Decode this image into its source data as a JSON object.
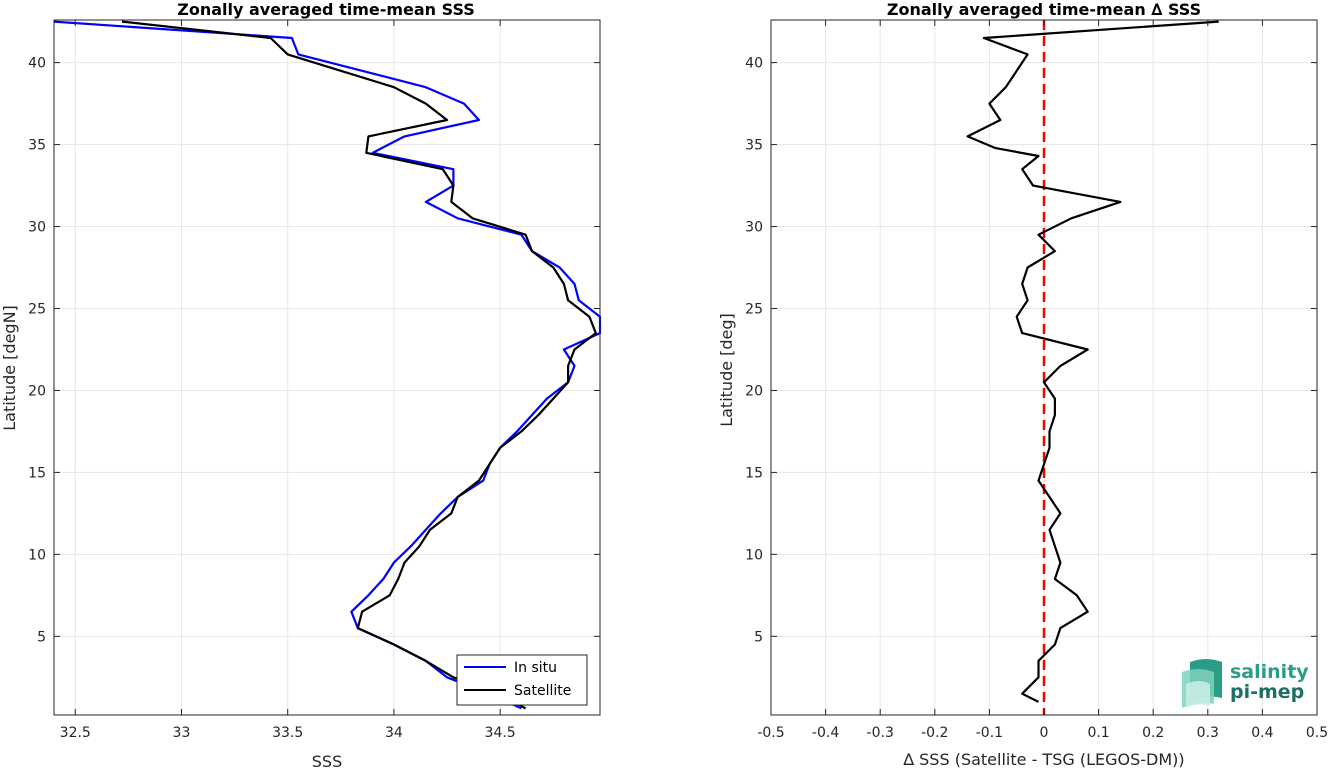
{
  "chart_data": [
    {
      "type": "line",
      "title": "Zonally averaged time-mean SSS",
      "xlabel": "SSS",
      "ylabel": "Latitude [degN]",
      "xlim": [
        32.4,
        34.97
      ],
      "ylim": [
        0.2,
        42.6
      ],
      "xticks": [
        32.5,
        33,
        33.5,
        34,
        34.5
      ],
      "yticks": [
        5,
        10,
        15,
        20,
        25,
        30,
        35,
        40
      ],
      "grid": true,
      "legend": "bottom-right",
      "series": [
        {
          "name": "In situ",
          "color": "#0000ff",
          "points": [
            [
              32.4,
              42.5
            ],
            [
              33.52,
              41.5
            ],
            [
              33.55,
              40.5
            ],
            [
              33.85,
              39.5
            ],
            [
              34.15,
              38.5
            ],
            [
              34.33,
              37.5
            ],
            [
              34.4,
              36.5
            ],
            [
              34.05,
              35.5
            ],
            [
              33.9,
              34.5
            ],
            [
              34.28,
              33.5
            ],
            [
              34.28,
              32.5
            ],
            [
              34.15,
              31.5
            ],
            [
              34.3,
              30.5
            ],
            [
              34.6,
              29.5
            ],
            [
              34.65,
              28.5
            ],
            [
              34.78,
              27.5
            ],
            [
              34.85,
              26.5
            ],
            [
              34.87,
              25.5
            ],
            [
              34.97,
              24.5
            ],
            [
              34.97,
              23.5
            ],
            [
              34.8,
              22.5
            ],
            [
              34.85,
              21.5
            ],
            [
              34.82,
              20.5
            ],
            [
              34.72,
              19.5
            ],
            [
              34.65,
              18.5
            ],
            [
              34.58,
              17.5
            ],
            [
              34.5,
              16.5
            ],
            [
              34.45,
              15.5
            ],
            [
              34.42,
              14.5
            ],
            [
              34.3,
              13.5
            ],
            [
              34.22,
              12.5
            ],
            [
              34.15,
              11.5
            ],
            [
              34.08,
              10.5
            ],
            [
              34.0,
              9.5
            ],
            [
              33.95,
              8.5
            ],
            [
              33.88,
              7.5
            ],
            [
              33.8,
              6.5
            ],
            [
              33.83,
              5.5
            ],
            [
              34.0,
              4.5
            ],
            [
              34.15,
              3.5
            ],
            [
              34.25,
              2.5
            ],
            [
              34.45,
              1.5
            ],
            [
              34.6,
              0.6
            ]
          ]
        },
        {
          "name": "Satellite",
          "color": "#000000",
          "points": [
            [
              32.72,
              42.5
            ],
            [
              33.42,
              41.5
            ],
            [
              33.5,
              40.5
            ],
            [
              33.75,
              39.5
            ],
            [
              34.0,
              38.5
            ],
            [
              34.15,
              37.5
            ],
            [
              34.25,
              36.5
            ],
            [
              33.88,
              35.5
            ],
            [
              33.87,
              34.5
            ],
            [
              34.23,
              33.5
            ],
            [
              34.28,
              32.5
            ],
            [
              34.27,
              31.5
            ],
            [
              34.37,
              30.5
            ],
            [
              34.62,
              29.5
            ],
            [
              34.65,
              28.5
            ],
            [
              34.75,
              27.5
            ],
            [
              34.8,
              26.5
            ],
            [
              34.82,
              25.5
            ],
            [
              34.92,
              24.5
            ],
            [
              34.95,
              23.5
            ],
            [
              34.85,
              22.5
            ],
            [
              34.82,
              21.5
            ],
            [
              34.82,
              20.5
            ],
            [
              34.75,
              19.5
            ],
            [
              34.68,
              18.5
            ],
            [
              34.6,
              17.5
            ],
            [
              34.5,
              16.5
            ],
            [
              34.45,
              15.5
            ],
            [
              34.4,
              14.5
            ],
            [
              34.3,
              13.5
            ],
            [
              34.27,
              12.5
            ],
            [
              34.17,
              11.5
            ],
            [
              34.12,
              10.5
            ],
            [
              34.05,
              9.5
            ],
            [
              34.02,
              8.5
            ],
            [
              33.98,
              7.5
            ],
            [
              33.85,
              6.5
            ],
            [
              33.83,
              5.5
            ],
            [
              34.0,
              4.5
            ],
            [
              34.15,
              3.5
            ],
            [
              34.28,
              2.5
            ],
            [
              34.5,
              1.5
            ],
            [
              34.62,
              0.6
            ]
          ]
        }
      ]
    },
    {
      "type": "line",
      "title": "Zonally averaged time-mean ∆ SSS",
      "xlabel": "∆ SSS (Satellite - TSG (LEGOS-DM))",
      "ylabel": "Latitude [deg]",
      "xlim": [
        -0.5,
        0.5
      ],
      "ylim": [
        0.2,
        42.6
      ],
      "xticks": [
        -0.5,
        -0.4,
        -0.3,
        -0.2,
        -0.1,
        0,
        0.1,
        0.2,
        0.3,
        0.4,
        0.5
      ],
      "yticks": [
        5,
        10,
        15,
        20,
        25,
        30,
        35,
        40
      ],
      "grid": true,
      "zero_line": {
        "value": 0,
        "color": "#ff0000",
        "style": "dashed"
      },
      "series": [
        {
          "color": "#000000",
          "points": [
            [
              0.32,
              42.5
            ],
            [
              -0.11,
              41.5
            ],
            [
              -0.03,
              40.5
            ],
            [
              -0.05,
              39.5
            ],
            [
              -0.07,
              38.5
            ],
            [
              -0.1,
              37.5
            ],
            [
              -0.08,
              36.5
            ],
            [
              -0.14,
              35.5
            ],
            [
              -0.09,
              34.8
            ],
            [
              -0.01,
              34.3
            ],
            [
              -0.04,
              33.5
            ],
            [
              -0.02,
              32.5
            ],
            [
              0.14,
              31.5
            ],
            [
              0.05,
              30.5
            ],
            [
              -0.01,
              29.5
            ],
            [
              0.02,
              28.5
            ],
            [
              -0.03,
              27.5
            ],
            [
              -0.04,
              26.5
            ],
            [
              -0.03,
              25.5
            ],
            [
              -0.05,
              24.5
            ],
            [
              -0.04,
              23.5
            ],
            [
              0.08,
              22.5
            ],
            [
              0.03,
              21.5
            ],
            [
              0.0,
              20.5
            ],
            [
              0.02,
              19.5
            ],
            [
              0.02,
              18.5
            ],
            [
              0.01,
              17.5
            ],
            [
              0.01,
              16.5
            ],
            [
              0.0,
              15.5
            ],
            [
              -0.01,
              14.5
            ],
            [
              0.01,
              13.5
            ],
            [
              0.03,
              12.5
            ],
            [
              0.01,
              11.5
            ],
            [
              0.02,
              10.5
            ],
            [
              0.03,
              9.5
            ],
            [
              0.02,
              8.5
            ],
            [
              0.06,
              7.5
            ],
            [
              0.08,
              6.5
            ],
            [
              0.03,
              5.5
            ],
            [
              0.02,
              4.5
            ],
            [
              -0.01,
              3.5
            ],
            [
              -0.01,
              2.5
            ],
            [
              -0.04,
              1.5
            ],
            [
              -0.01,
              1.0
            ]
          ]
        }
      ]
    }
  ],
  "logo": {
    "line1": "salinity",
    "line2": "pi-mep"
  }
}
